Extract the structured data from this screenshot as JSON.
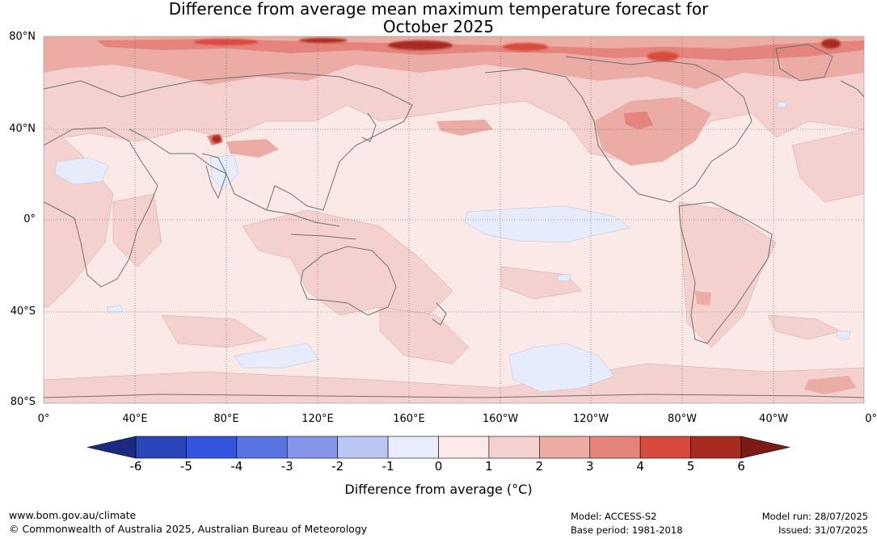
{
  "title": {
    "line1": "Difference from average mean maximum temperature forecast for",
    "line2": "October 2025"
  },
  "map": {
    "lat_labels": [
      "80°N",
      "40°N",
      "0°",
      "40°S",
      "80°S"
    ],
    "lon_labels": [
      "0°",
      "40°E",
      "80°E",
      "120°E",
      "160°E",
      "160°W",
      "120°W",
      "80°W",
      "40°W",
      "0°"
    ],
    "colors": {
      "neutral_warm": "#fbe9e8",
      "level_1": "#f4d1ce",
      "level_2": "#ecaca6",
      "level_3": "#e4847c",
      "level_4": "#d94a3e",
      "level_5": "#a82b22",
      "level_6": "#7a1b16",
      "cool_1": "#e6ecfa",
      "coast": "#707070"
    }
  },
  "colorbar": {
    "ticks": [
      "-6",
      "-5",
      "-4",
      "-3",
      "-2",
      "-1",
      "0",
      "1",
      "2",
      "3",
      "4",
      "5",
      "6"
    ],
    "colors": [
      "#1a2a80",
      "#2a45b8",
      "#3355e0",
      "#5a74e4",
      "#8595ea",
      "#bcc6f2",
      "#e9ecfa",
      "#fbeae9",
      "#f4d1ce",
      "#ecaca6",
      "#e4847c",
      "#d94a3e",
      "#a82b22",
      "#7a1b16"
    ],
    "label": "Difference from average (°C)"
  },
  "footer": {
    "website": "www.bom.gov.au/climate",
    "copyright": "© Commonwealth of Australia 2025, Australian Bureau of Meteorology",
    "model": "Model: ACCESS-S2",
    "base_period": "Base period: 1981-2018",
    "model_run": "Model run: 28/07/2025",
    "issued": "Issued: 31/07/2025"
  }
}
